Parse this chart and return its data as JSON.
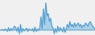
{
  "values": [
    0.0,
    0.0,
    0.1,
    -0.1,
    0.2,
    0.1,
    -0.3,
    0.5,
    -0.2,
    0.3,
    -0.1,
    0.4,
    0.8,
    0.5,
    -0.3,
    0.6,
    -0.8,
    1.2,
    -0.5,
    0.3,
    -0.2,
    0.1,
    0.4,
    -0.3,
    0.2,
    0.1,
    -0.1,
    0.3,
    -0.4,
    0.6,
    -0.3,
    0.2,
    -0.1,
    0.5,
    2.8,
    0.3,
    4.5,
    1.2,
    5.8,
    3.0,
    3.5,
    1.8,
    2.5,
    0.8,
    0.5,
    -0.8,
    0.3,
    -0.5,
    0.8,
    -0.3,
    0.5,
    0.2,
    -0.4,
    0.6,
    -0.5,
    0.3,
    1.2,
    0.5,
    1.8,
    0.8,
    1.2,
    0.6,
    1.5,
    0.8,
    1.2,
    1.5,
    0.8,
    1.2,
    0.5,
    1.0,
    0.8,
    1.5,
    1.2,
    0.8,
    1.5,
    1.8,
    1.2,
    0.8,
    0.5,
    0.3
  ],
  "line_color": "#4a9fd4",
  "fill_color": "#4a9fd4",
  "fill_alpha": 0.4,
  "background_color": "#f0f0f0",
  "linewidth": 0.7,
  "baseline": 0.0
}
